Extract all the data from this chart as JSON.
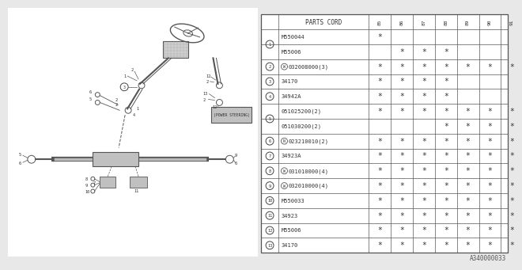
{
  "bg_color": "#e8e8e8",
  "title": "PARTS CORD",
  "rows": [
    {
      "num": "1",
      "sub": 0,
      "total_sub": 2,
      "prefix": "",
      "code": "M550044",
      "marks": [
        true,
        false,
        false,
        false,
        false,
        false,
        false
      ]
    },
    {
      "num": "1",
      "sub": 1,
      "total_sub": 2,
      "prefix": "",
      "code": "M55006",
      "marks": [
        false,
        true,
        true,
        true,
        false,
        false,
        false
      ]
    },
    {
      "num": "2",
      "sub": 0,
      "total_sub": 1,
      "prefix": "W",
      "code": "032008000(3)",
      "marks": [
        true,
        true,
        true,
        true,
        true,
        true,
        true
      ]
    },
    {
      "num": "3",
      "sub": 0,
      "total_sub": 1,
      "prefix": "",
      "code": "34170",
      "marks": [
        true,
        true,
        true,
        true,
        false,
        false,
        false
      ]
    },
    {
      "num": "4",
      "sub": 0,
      "total_sub": 1,
      "prefix": "",
      "code": "34942A",
      "marks": [
        true,
        true,
        true,
        true,
        false,
        false,
        false
      ]
    },
    {
      "num": "5",
      "sub": 0,
      "total_sub": 2,
      "prefix": "",
      "code": "051025200(2)",
      "marks": [
        true,
        true,
        true,
        true,
        true,
        true,
        true
      ]
    },
    {
      "num": "5",
      "sub": 1,
      "total_sub": 2,
      "prefix": "",
      "code": "051030200(2)",
      "marks": [
        false,
        false,
        false,
        true,
        true,
        true,
        true
      ]
    },
    {
      "num": "6",
      "sub": 0,
      "total_sub": 1,
      "prefix": "N",
      "code": "023210010(2)",
      "marks": [
        true,
        true,
        true,
        true,
        true,
        true,
        true
      ]
    },
    {
      "num": "7",
      "sub": 0,
      "total_sub": 1,
      "prefix": "",
      "code": "34923A",
      "marks": [
        true,
        true,
        true,
        true,
        true,
        true,
        true
      ]
    },
    {
      "num": "8",
      "sub": 0,
      "total_sub": 1,
      "prefix": "W",
      "code": "031010000(4)",
      "marks": [
        true,
        true,
        true,
        true,
        true,
        true,
        true
      ]
    },
    {
      "num": "9",
      "sub": 0,
      "total_sub": 1,
      "prefix": "W",
      "code": "032010000(4)",
      "marks": [
        true,
        true,
        true,
        true,
        true,
        true,
        true
      ]
    },
    {
      "num": "10",
      "sub": 0,
      "total_sub": 1,
      "prefix": "",
      "code": "M550033",
      "marks": [
        true,
        true,
        true,
        true,
        true,
        true,
        true
      ]
    },
    {
      "num": "11",
      "sub": 0,
      "total_sub": 1,
      "prefix": "",
      "code": "34923",
      "marks": [
        true,
        true,
        true,
        true,
        true,
        true,
        true
      ]
    },
    {
      "num": "12",
      "sub": 0,
      "total_sub": 1,
      "prefix": "",
      "code": "M55006",
      "marks": [
        true,
        true,
        true,
        true,
        true,
        true,
        true
      ]
    },
    {
      "num": "13",
      "sub": 0,
      "total_sub": 1,
      "prefix": "",
      "code": "34170",
      "marks": [
        true,
        true,
        true,
        true,
        true,
        true,
        true
      ]
    }
  ],
  "year_labels": [
    "85",
    "86",
    "87",
    "88",
    "89",
    "90",
    "91"
  ],
  "part_number": "A340000033"
}
